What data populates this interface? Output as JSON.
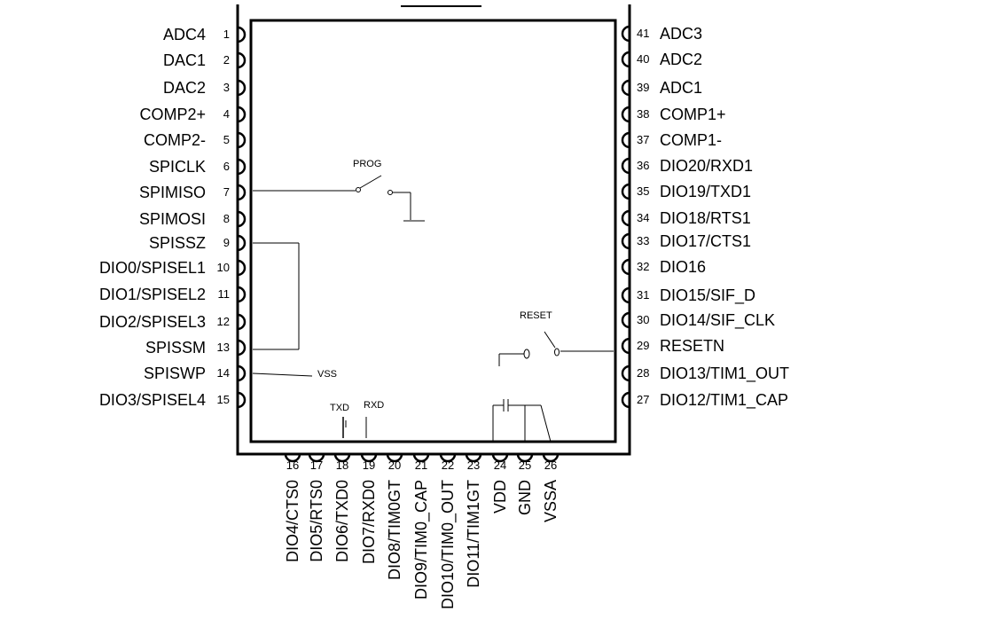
{
  "left_pins": [
    {
      "num": "1",
      "name": "ADC4"
    },
    {
      "num": "2",
      "name": "DAC1"
    },
    {
      "num": "3",
      "name": "DAC2"
    },
    {
      "num": "4",
      "name": "COMP2+"
    },
    {
      "num": "5",
      "name": "COMP2-"
    },
    {
      "num": "6",
      "name": "SPICLK"
    },
    {
      "num": "7",
      "name": "SPIMISO"
    },
    {
      "num": "8",
      "name": "SPIMOSI"
    },
    {
      "num": "9",
      "name": "SPISSZ"
    },
    {
      "num": "10",
      "name": "DIO0/SPISEL1"
    },
    {
      "num": "11",
      "name": "DIO1/SPISEL2"
    },
    {
      "num": "12",
      "name": "DIO2/SPISEL3"
    },
    {
      "num": "13",
      "name": "SPISSM"
    },
    {
      "num": "14",
      "name": "SPISWP"
    },
    {
      "num": "15",
      "name": "DIO3/SPISEL4"
    }
  ],
  "right_pins": [
    {
      "num": "41",
      "name": "ADC3"
    },
    {
      "num": "40",
      "name": "ADC2"
    },
    {
      "num": "39",
      "name": "ADC1"
    },
    {
      "num": "38",
      "name": "COMP1+"
    },
    {
      "num": "37",
      "name": "COMP1-"
    },
    {
      "num": "36",
      "name": "DIO20/RXD1"
    },
    {
      "num": "35",
      "name": "DIO19/TXD1"
    },
    {
      "num": "34",
      "name": "DIO18/RTS1"
    },
    {
      "num": "33",
      "name": "DIO17/CTS1"
    },
    {
      "num": "32",
      "name": "DIO16"
    },
    {
      "num": "31",
      "name": "DIO15/SIF_D"
    },
    {
      "num": "30",
      "name": "DIO14/SIF_CLK"
    },
    {
      "num": "29",
      "name": "RESETN"
    },
    {
      "num": "28",
      "name": "DIO13/TIM1_OUT"
    },
    {
      "num": "27",
      "name": "DIO12/TIM1_CAP"
    }
  ],
  "bottom_pins": [
    {
      "num": "16",
      "name": "DIO4/CTS0"
    },
    {
      "num": "17",
      "name": "DIO5/RTS0"
    },
    {
      "num": "18",
      "name": "DIO6/TXD0"
    },
    {
      "num": "19",
      "name": "DIO7/RXD0"
    },
    {
      "num": "20",
      "name": "DIO8/TIM0GT"
    },
    {
      "num": "21",
      "name": "DIO9/TIM0_CAP"
    },
    {
      "num": "22",
      "name": "DIO10/TIM0_OUT"
    },
    {
      "num": "23",
      "name": "DIO11/TIM1GT"
    },
    {
      "num": "24",
      "name": "VDD"
    },
    {
      "num": "25",
      "name": "GND"
    },
    {
      "num": "26",
      "name": "VSSA"
    }
  ],
  "annotations": {
    "prog": "PROG",
    "reset": "RESET",
    "vss": "VSS",
    "txd": "TXD",
    "rxd": "RXD"
  }
}
